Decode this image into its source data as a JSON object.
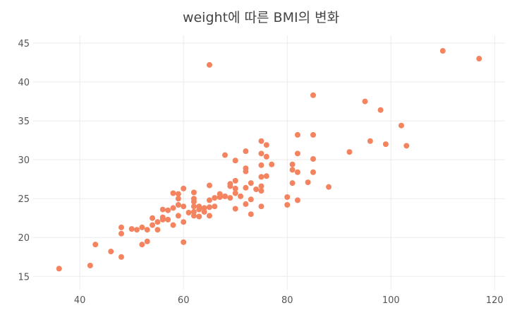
{
  "chart_data": {
    "type": "scatter",
    "title": "weight에 따른 BMI의 변화",
    "xlabel": "",
    "ylabel": "",
    "xlim": [
      31,
      122
    ],
    "ylim": [
      13.3,
      46
    ],
    "xticks": [
      40,
      60,
      80,
      100,
      120
    ],
    "yticks": [
      15,
      20,
      25,
      30,
      35,
      40,
      45
    ],
    "grid": true,
    "legend": "none",
    "color": "#f4845f",
    "points": [
      [
        36,
        16.0
      ],
      [
        42,
        16.4
      ],
      [
        43,
        19.1
      ],
      [
        46,
        18.2
      ],
      [
        48,
        17.5
      ],
      [
        48,
        20.5
      ],
      [
        48,
        21.3
      ],
      [
        50,
        21.1
      ],
      [
        51,
        21.0
      ],
      [
        52,
        19.1
      ],
      [
        52,
        21.3
      ],
      [
        53,
        19.5
      ],
      [
        53,
        21.0
      ],
      [
        54,
        21.6
      ],
      [
        54,
        22.5
      ],
      [
        55,
        21.0
      ],
      [
        55,
        22.0
      ],
      [
        56,
        22.3
      ],
      [
        56,
        23.6
      ],
      [
        56,
        22.6
      ],
      [
        57,
        23.5
      ],
      [
        57,
        22.3
      ],
      [
        58,
        21.6
      ],
      [
        58,
        23.8
      ],
      [
        58,
        25.7
      ],
      [
        59,
        22.8
      ],
      [
        59,
        24.2
      ],
      [
        59,
        25.0
      ],
      [
        59,
        25.6
      ],
      [
        60,
        19.4
      ],
      [
        60,
        22.0
      ],
      [
        60,
        24.0
      ],
      [
        60,
        26.3
      ],
      [
        61,
        23.2
      ],
      [
        62,
        22.8
      ],
      [
        62,
        23.3
      ],
      [
        62,
        24.0
      ],
      [
        62,
        24.6
      ],
      [
        62,
        25.0
      ],
      [
        62,
        25.8
      ],
      [
        63,
        22.7
      ],
      [
        63,
        23.6
      ],
      [
        63,
        24.0
      ],
      [
        64,
        23.3
      ],
      [
        64,
        23.8
      ],
      [
        65,
        22.8
      ],
      [
        65,
        23.9
      ],
      [
        65,
        24.8
      ],
      [
        65,
        26.7
      ],
      [
        65,
        42.2
      ],
      [
        66,
        24.0
      ],
      [
        66,
        25.1
      ],
      [
        67,
        25.2
      ],
      [
        67,
        25.6
      ],
      [
        68,
        25.3
      ],
      [
        68,
        30.6
      ],
      [
        69,
        25.1
      ],
      [
        69,
        26.6
      ],
      [
        69,
        26.9
      ],
      [
        70,
        23.7
      ],
      [
        70,
        25.7
      ],
      [
        70,
        26.3
      ],
      [
        70,
        27.3
      ],
      [
        70,
        29.9
      ],
      [
        71,
        25.3
      ],
      [
        72,
        24.3
      ],
      [
        72,
        26.4
      ],
      [
        72,
        28.5
      ],
      [
        72,
        28.9
      ],
      [
        72,
        31.1
      ],
      [
        73,
        23.0
      ],
      [
        73,
        24.9
      ],
      [
        73,
        27.0
      ],
      [
        74,
        26.2
      ],
      [
        75,
        24.0
      ],
      [
        75,
        26.0
      ],
      [
        75,
        26.6
      ],
      [
        75,
        27.8
      ],
      [
        75,
        29.3
      ],
      [
        75,
        30.8
      ],
      [
        75,
        32.4
      ],
      [
        76,
        27.9
      ],
      [
        76,
        30.4
      ],
      [
        76,
        31.9
      ],
      [
        77,
        29.4
      ],
      [
        80,
        24.2
      ],
      [
        80,
        25.2
      ],
      [
        81,
        27.0
      ],
      [
        81,
        28.7
      ],
      [
        81,
        29.4
      ],
      [
        82,
        24.8
      ],
      [
        82,
        28.4
      ],
      [
        82,
        30.8
      ],
      [
        82,
        33.2
      ],
      [
        84,
        27.1
      ],
      [
        85,
        28.4
      ],
      [
        85,
        30.1
      ],
      [
        85,
        33.2
      ],
      [
        85,
        38.3
      ],
      [
        88,
        26.5
      ],
      [
        92,
        31.0
      ],
      [
        95,
        37.5
      ],
      [
        96,
        32.4
      ],
      [
        98,
        36.4
      ],
      [
        99,
        32.0
      ],
      [
        102,
        34.4
      ],
      [
        103,
        31.8
      ],
      [
        110,
        44.0
      ],
      [
        117,
        43.0
      ]
    ]
  }
}
